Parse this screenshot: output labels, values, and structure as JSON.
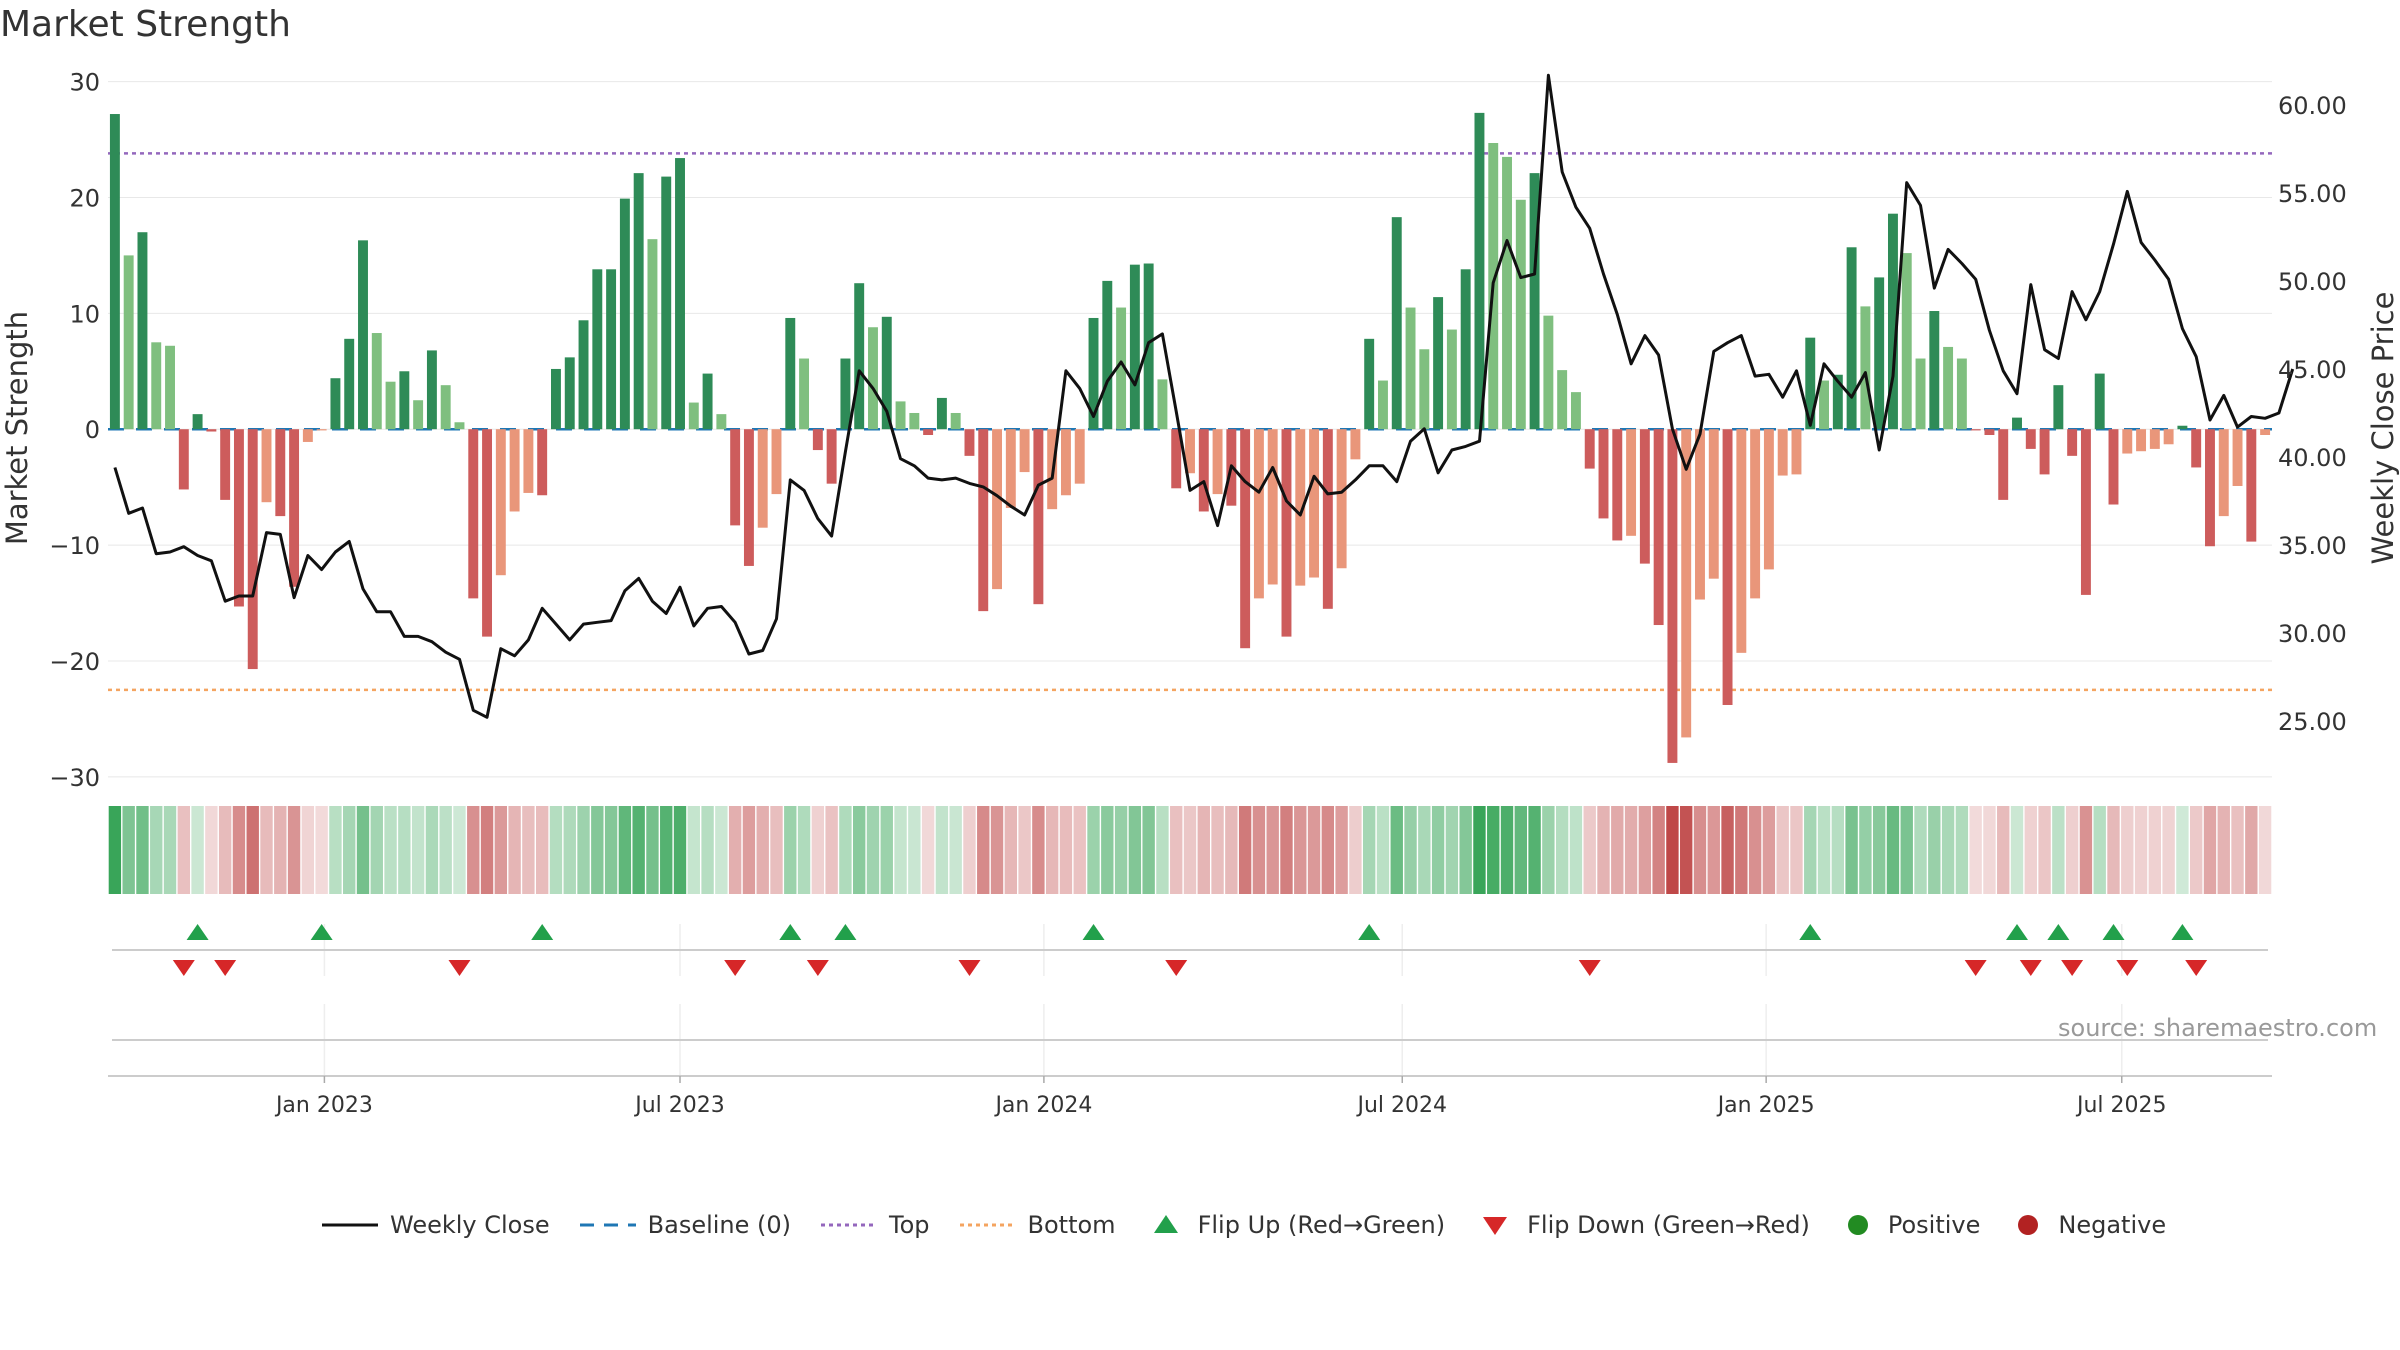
{
  "chart_data": {
    "type": "bar",
    "title": "Market Strength",
    "ylabel": "Market Strength",
    "y2label": "Weekly Close Price",
    "ylim": [
      -32,
      31
    ],
    "y2lim": [
      20.5,
      62.0
    ],
    "yticks": [
      30,
      20,
      10,
      0,
      -10,
      -20,
      -30
    ],
    "ytick_labels": [
      "30",
      "20",
      "10",
      "0",
      "−10",
      "−20",
      "−30"
    ],
    "y2ticks": [
      60,
      55,
      50,
      45,
      40,
      35,
      30,
      25
    ],
    "y2tick_labels": [
      "60.00",
      "55.00",
      "50.00",
      "45.00",
      "40.00",
      "35.00",
      "30.00",
      "25.00"
    ],
    "xticks": [
      {
        "label": "Jan 2023",
        "week": 15.2
      },
      {
        "label": "Jul 2023",
        "week": 41.0
      },
      {
        "label": "Jan 2024",
        "week": 67.4
      },
      {
        "label": "Jul 2024",
        "week": 93.4
      },
      {
        "label": "Jan 2025",
        "week": 119.8
      },
      {
        "label": "Jul 2025",
        "week": 145.6
      }
    ],
    "top_line": 23.8,
    "bottom_line": -22.5,
    "baseline": 0,
    "strength": [
      27.2,
      15,
      17,
      7.5,
      7.2,
      -5.2,
      1.3,
      -0.2,
      -6.1,
      -15.3,
      -20.7,
      -6.3,
      -7.5,
      -13.6,
      -1.1,
      -0.1,
      4.4,
      7.8,
      16.3,
      8.3,
      4.1,
      5,
      2.5,
      6.8,
      3.8,
      0.6,
      -14.6,
      -17.9,
      -12.6,
      -7.1,
      -5.5,
      -5.7,
      5.2,
      6.2,
      9.4,
      13.8,
      13.8,
      19.9,
      22.1,
      16.4,
      21.8,
      23.4,
      2.3,
      4.8,
      1.3,
      -8.3,
      -11.8,
      -8.5,
      -5.6,
      9.6,
      6.1,
      -1.8,
      -4.7,
      6.1,
      12.6,
      8.8,
      9.7,
      2.4,
      1.4,
      -0.5,
      2.7,
      1.4,
      -2.3,
      -15.7,
      -13.8,
      -6.8,
      -3.7,
      -15.1,
      -6.9,
      -5.7,
      -4.7,
      9.6,
      12.8,
      10.5,
      14.2,
      14.3,
      4.3,
      -5.1,
      -3.8,
      -7.1,
      -5.6,
      -6.6,
      -18.9,
      -14.6,
      -13.4,
      -17.9,
      -13.5,
      -12.8,
      -15.5,
      -12,
      -2.6,
      7.8,
      4.2,
      18.3,
      10.5,
      6.9,
      11.4,
      8.6,
      13.8,
      27.3,
      24.7,
      23.5,
      19.8,
      22.1,
      9.8,
      5.1,
      3.2,
      -3.4,
      -7.7,
      -9.6,
      -9.2,
      -11.6,
      -16.9,
      -28.8,
      -26.6,
      -14.7,
      -12.9,
      -23.8,
      -19.3,
      -14.6,
      -12.1,
      -4,
      -3.9,
      7.9,
      4.2,
      4.7,
      15.7,
      10.6,
      13.1,
      18.6,
      15.2,
      6.1,
      10.2,
      7.1,
      6.1,
      -0.1,
      -0.5,
      -6.1,
      1,
      -1.7,
      -3.9,
      3.8,
      -2.3,
      -14.3,
      4.8,
      -6.5,
      -2.1,
      -1.9,
      -1.7,
      -1.3,
      0.3,
      -3.3,
      -10.1,
      -7.5,
      -4.9,
      -9.7,
      -0.5
    ],
    "weekly_close": [
      39.4,
      36.8,
      37.1,
      34.5,
      34.6,
      34.9,
      34.4,
      34.1,
      31.8,
      32.1,
      32.1,
      35.7,
      35.6,
      32,
      34.4,
      33.6,
      34.6,
      35.2,
      32.5,
      31.2,
      31.2,
      29.8,
      29.8,
      29.5,
      28.9,
      28.5,
      25.6,
      25.2,
      29.1,
      28.7,
      29.6,
      31.4,
      30.5,
      29.6,
      30.5,
      30.6,
      30.7,
      32.4,
      33.1,
      31.8,
      31.1,
      32.6,
      30.4,
      31.4,
      31.5,
      30.6,
      28.8,
      29,
      30.8,
      38.7,
      38.1,
      36.5,
      35.5,
      40.3,
      44.9,
      43.9,
      42.6,
      39.9,
      39.5,
      38.8,
      38.7,
      38.8,
      38.5,
      38.3,
      37.8,
      37.2,
      36.7,
      38.4,
      38.8,
      44.9,
      43.9,
      42.3,
      44.3,
      45.4,
      44.1,
      46.5,
      47,
      42.6,
      38.1,
      38.6,
      36.1,
      39.5,
      38.6,
      38,
      39.4,
      37.5,
      36.7,
      38.9,
      37.9,
      38,
      38.7,
      39.5,
      39.5,
      38.6,
      40.9,
      41.6,
      39.1,
      40.4,
      40.6,
      40.9,
      49.9,
      52.3,
      50.2,
      50.4,
      61.7,
      56.2,
      54.2,
      53,
      50.4,
      48.1,
      45.3,
      46.9,
      45.8,
      41.6,
      39.3,
      41.3,
      46,
      46.5,
      46.9,
      44.6,
      44.7,
      43.4,
      44.9,
      41.8,
      45.3,
      44.3,
      43.4,
      44.8,
      40.4,
      44.6,
      55.6,
      54.3,
      49.6,
      51.8,
      51,
      50.1,
      47.2,
      44.9,
      43.6,
      49.8,
      46.1,
      45.6,
      49.4,
      47.8,
      49.4,
      52.1,
      55.1,
      52.2,
      51.2,
      50.1,
      47.3,
      45.7,
      42.1,
      43.5,
      41.7,
      42.3,
      42.2,
      42.5,
      45
    ]
  },
  "signals": {
    "flip_up_weeks": [
      6,
      15,
      31,
      49,
      53,
      71,
      91,
      123,
      138,
      141,
      145,
      150
    ],
    "flip_down_weeks": [
      5,
      8,
      25,
      45,
      51,
      62,
      77,
      107,
      135,
      139,
      142,
      146,
      151
    ]
  },
  "legend": {
    "weekly_close": "Weekly Close",
    "baseline": "Baseline (0)",
    "top": "Top",
    "bottom": "Bottom",
    "flip_up": "Flip Up (Red→Green)",
    "flip_down": "Flip Down (Green→Red)",
    "positive": "Positive",
    "negative": "Negative"
  },
  "source": "source: sharemaestro.com",
  "colors": {
    "pos_strong": "#2e8b57",
    "pos_weak": "#7fbf7f",
    "neg_strong": "#cd5c5c",
    "neg_weak": "#e9967a",
    "line": "#111111",
    "baseline": "#1f77b4",
    "top": "#9467bd",
    "bottom": "#f4a460",
    "flip_up": "#22a04b",
    "flip_down": "#d62728",
    "positive": "#228b22",
    "negative": "#b22222"
  }
}
